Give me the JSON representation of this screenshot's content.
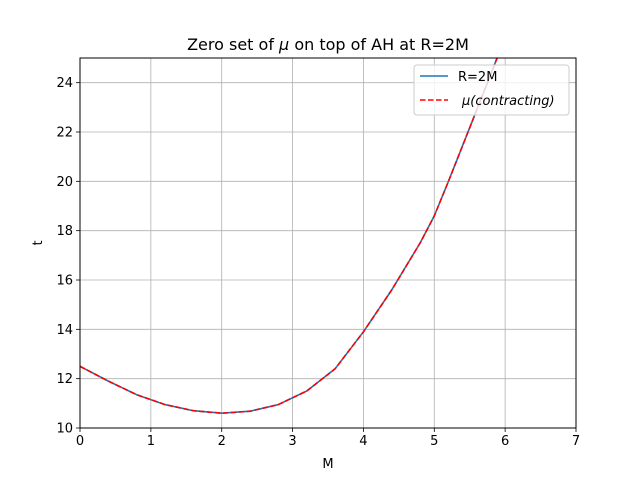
{
  "chart_data": {
    "type": "line",
    "title_prefix": "Zero set of ",
    "title_symbol": "μ",
    "title_suffix": " on top of AH at R=2M",
    "xlabel": "M",
    "ylabel": "t",
    "xlim": [
      0,
      7
    ],
    "ylim": [
      10,
      25
    ],
    "xticks": [
      0,
      1,
      2,
      3,
      4,
      5,
      6,
      7
    ],
    "yticks": [
      10,
      12,
      14,
      16,
      18,
      20,
      22,
      24
    ],
    "grid": true,
    "legend_position": "top-right",
    "series": [
      {
        "name": "R=2M",
        "color": "#1f77b4",
        "style": "solid",
        "x": [
          0,
          0.4,
          0.8,
          1.2,
          1.6,
          2.0,
          2.4,
          2.8,
          3.2,
          3.6,
          4.0,
          4.4,
          4.8,
          5.0,
          5.2,
          5.6,
          5.9
        ],
        "y": [
          12.5,
          11.9,
          11.35,
          10.95,
          10.7,
          10.6,
          10.68,
          10.95,
          11.5,
          12.4,
          13.9,
          15.6,
          17.5,
          18.6,
          20.0,
          22.9,
          25.1
        ]
      },
      {
        "name_symbol": "μ",
        "name_text": "(contracting)",
        "color": "#ff0000",
        "style": "dashed",
        "x": [
          0,
          0.4,
          0.8,
          1.2,
          1.6,
          2.0,
          2.4,
          2.8,
          3.2,
          3.6,
          4.0,
          4.4,
          4.8,
          5.0,
          5.2,
          5.6,
          5.9
        ],
        "y": [
          12.5,
          11.9,
          11.35,
          10.95,
          10.7,
          10.6,
          10.68,
          10.95,
          11.5,
          12.4,
          13.9,
          15.6,
          17.5,
          18.6,
          20.0,
          22.9,
          25.1
        ]
      }
    ]
  }
}
